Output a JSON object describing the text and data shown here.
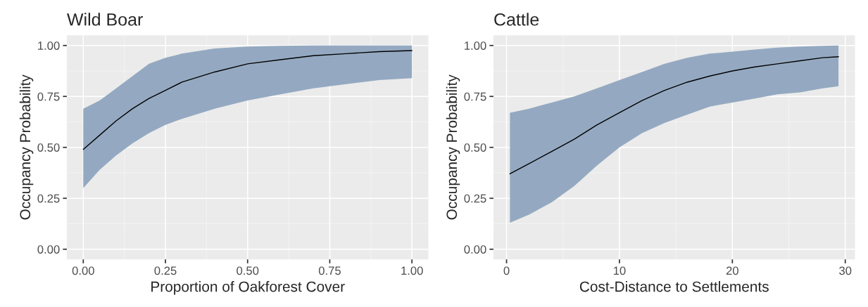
{
  "chart_data": [
    {
      "type": "line",
      "title": "Wild Boar",
      "xlabel": "Proportion of Oakforest Cover",
      "ylabel": "Occupancy Probability",
      "x": [
        0,
        0.05,
        0.1,
        0.15,
        0.2,
        0.25,
        0.3,
        0.4,
        0.5,
        0.6,
        0.7,
        0.8,
        0.9,
        1.0
      ],
      "xlim": [
        -0.05,
        1.05
      ],
      "xticks": [
        {
          "value": 0,
          "label": "0.00"
        },
        {
          "value": 0.25,
          "label": "0.25"
        },
        {
          "value": 0.5,
          "label": "0.50"
        },
        {
          "value": 0.75,
          "label": "0.75"
        },
        {
          "value": 1,
          "label": "1.00"
        }
      ],
      "ylim": [
        -0.05,
        1.05
      ],
      "yticks": [
        {
          "value": 0,
          "label": "0.00"
        },
        {
          "value": 0.25,
          "label": "0.25"
        },
        {
          "value": 0.5,
          "label": "0.50"
        },
        {
          "value": 0.75,
          "label": "0.75"
        },
        {
          "value": 1,
          "label": "1.00"
        }
      ],
      "grid": true,
      "series": [
        {
          "color": "#000000",
          "values": [
            0.49,
            0.56,
            0.63,
            0.69,
            0.74,
            0.78,
            0.82,
            0.87,
            0.91,
            0.93,
            0.95,
            0.96,
            0.97,
            0.975
          ],
          "upper": [
            0.69,
            0.73,
            0.79,
            0.85,
            0.91,
            0.94,
            0.96,
            0.985,
            0.995,
            0.998,
            1.0,
            1.0,
            1.0,
            1.0
          ],
          "lower": [
            0.3,
            0.39,
            0.46,
            0.52,
            0.57,
            0.61,
            0.64,
            0.69,
            0.73,
            0.76,
            0.79,
            0.81,
            0.83,
            0.84
          ]
        }
      ]
    },
    {
      "type": "line",
      "title": "Cattle",
      "xlabel": "Cost-Distance to Settlements",
      "ylabel": "Occupancy Probability",
      "x": [
        0.3,
        2,
        4,
        6,
        8,
        10,
        12,
        14,
        16,
        18,
        20,
        22,
        24,
        26,
        28,
        29.4
      ],
      "xlim": [
        -1.16,
        30.86
      ],
      "xticks": [
        0,
        10,
        20,
        30
      ],
      "ylim": [
        -0.05,
        1.05
      ],
      "yticks": [
        {
          "value": 0,
          "label": "0.00"
        },
        {
          "value": 0.25,
          "label": "0.25"
        },
        {
          "value": 0.5,
          "label": "0.50"
        },
        {
          "value": 0.75,
          "label": "0.75"
        },
        {
          "value": 1,
          "label": "1.00"
        }
      ],
      "grid": true,
      "series": [
        {
          "color": "#000000",
          "values": [
            0.37,
            0.42,
            0.48,
            0.54,
            0.61,
            0.67,
            0.73,
            0.78,
            0.82,
            0.85,
            0.875,
            0.895,
            0.91,
            0.925,
            0.94,
            0.945
          ],
          "upper": [
            0.67,
            0.69,
            0.72,
            0.75,
            0.79,
            0.83,
            0.87,
            0.91,
            0.94,
            0.96,
            0.97,
            0.98,
            0.99,
            0.995,
            0.998,
            1.0
          ],
          "lower": [
            0.13,
            0.17,
            0.23,
            0.31,
            0.41,
            0.5,
            0.57,
            0.62,
            0.66,
            0.7,
            0.72,
            0.74,
            0.76,
            0.77,
            0.79,
            0.8
          ]
        }
      ]
    }
  ]
}
